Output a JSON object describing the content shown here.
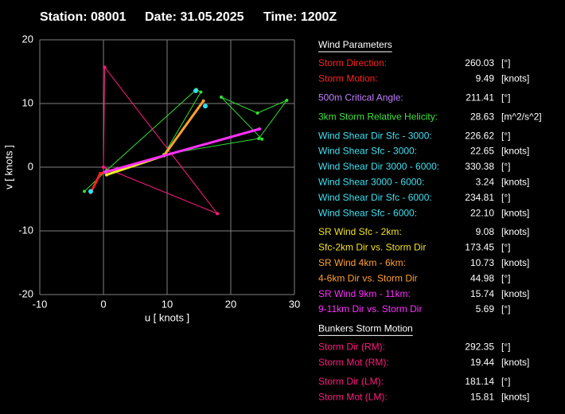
{
  "header": {
    "station": "Station: 08001",
    "date": "Date: 31.05.2025",
    "time": "Time: 1200Z"
  },
  "chart_data": {
    "type": "hodograph",
    "xlabel": "u  [ knots ]",
    "ylabel": "v  [ knots ]",
    "xlim": [
      -10,
      30
    ],
    "ylim": [
      -20,
      20
    ],
    "xticks": [
      -10,
      0,
      10,
      20,
      30
    ],
    "yticks": [
      -20,
      -10,
      0,
      10,
      20
    ],
    "grid": true,
    "series": [
      {
        "color": "#30e030",
        "width": 1,
        "x": [
          -3,
          0.5,
          14.6,
          15.3,
          9.5,
          24.4,
          28.8,
          24.2,
          18.5,
          24.9
        ],
        "values": [
          -3.8,
          -0.5,
          12.2,
          11.8,
          2,
          4.5,
          10.5,
          8.5,
          11,
          4.4
        ]
      },
      {
        "color": "#ff1a80",
        "width": 1,
        "x": [
          0,
          0.2,
          17.9,
          0
        ],
        "values": [
          0,
          15.7,
          -7.3,
          0
        ]
      },
      {
        "color": "#ff2020",
        "width": 3,
        "x": [
          -2,
          -0.5,
          9.5
        ],
        "values": [
          -4,
          -1,
          1.8
        ]
      },
      {
        "color": "#f0f020",
        "width": 3,
        "x": [
          0.5,
          9.5
        ],
        "values": [
          -1.2,
          1.8
        ]
      },
      {
        "color": "#ffa030",
        "width": 3,
        "x": [
          9.5,
          15.7
        ],
        "values": [
          1.8,
          10.4
        ]
      },
      {
        "color": "#ff30ff",
        "width": 3,
        "x": [
          0.2,
          24.5
        ],
        "values": [
          -0.8,
          6
        ]
      },
      {
        "color": "#30e0f0",
        "width": 0,
        "x": [
          -2,
          14.5,
          16
        ],
        "values": [
          -3.8,
          12,
          9.6
        ]
      }
    ]
  },
  "panel": {
    "sections": [
      {
        "title": "Wind Parameters",
        "groups": [
          [
            {
              "label": "Storm Direction:",
              "value": "260.03",
              "unit": "[°]",
              "color": "#ff2020"
            },
            {
              "label": "Storm Motion:",
              "value": "9.49",
              "unit": "[knots]",
              "color": "#ff2020"
            }
          ],
          [
            {
              "label": "500m Critical Angle:",
              "value": "211.41",
              "unit": "[°]",
              "color": "#c080ff"
            }
          ],
          [
            {
              "label": "3km Storm Relative Helicity:",
              "value": "28.63",
              "unit": "[m^2/s^2]",
              "color": "#40e040"
            }
          ],
          [
            {
              "label": "Wind Shear Dir Sfc - 3000:",
              "value": "226.62",
              "unit": "[°]",
              "color": "#40e0f0"
            },
            {
              "label": "Wind Shear Sfc - 3000:",
              "value": "22.65",
              "unit": "[knots]",
              "color": "#40e0f0"
            },
            {
              "label": "Wind Shear Dir 3000 - 6000:",
              "value": "330.38",
              "unit": "[°]",
              "color": "#40e0f0"
            },
            {
              "label": "Wind Shear 3000 - 6000:",
              "value": "3.24",
              "unit": "[knots]",
              "color": "#40e0f0"
            },
            {
              "label": "Wind Shear Dir Sfc - 6000:",
              "value": "234.81",
              "unit": "[°]",
              "color": "#40e0f0"
            },
            {
              "label": "Wind Shear Sfc - 6000:",
              "value": "22.10",
              "unit": "[knots]",
              "color": "#40e0f0"
            }
          ],
          [
            {
              "label": "SR Wind Sfc - 2km:",
              "value": "9.08",
              "unit": "[knots]",
              "color": "#f0e020"
            },
            {
              "label": "Sfc-2km Dir vs. Storm Dir",
              "value": "173.45",
              "unit": "[°]",
              "color": "#f0e020"
            },
            {
              "label": "SR Wind 4km - 6km:",
              "value": "10.73",
              "unit": "[knots]",
              "color": "#ffa030"
            },
            {
              "label": "4-6km Dir vs. Storm Dir",
              "value": "44.98",
              "unit": "[°]",
              "color": "#ffa030"
            },
            {
              "label": "SR Wind 9km - 11km:",
              "value": "15.74",
              "unit": "[knots]",
              "color": "#ff30ff"
            },
            {
              "label": "9-11km Dir vs. Storm Dir",
              "value": "5.69",
              "unit": "[°]",
              "color": "#ff30ff"
            }
          ]
        ]
      },
      {
        "title": "Bunkers Storm Motion",
        "groups": [
          [
            {
              "label": "Storm Dir (RM):",
              "value": "292.35",
              "unit": "[°]",
              "color": "#ff1a80"
            },
            {
              "label": "Storm Mot (RM):",
              "value": "19.44",
              "unit": "[knots]",
              "color": "#ff1a80"
            }
          ],
          [
            {
              "label": "Storm Dir (LM):",
              "value": "181.14",
              "unit": "[°]",
              "color": "#ff1a80"
            },
            {
              "label": "Storm Mot (LM):",
              "value": "15.81",
              "unit": "[knots]",
              "color": "#ff1a80"
            }
          ]
        ]
      }
    ]
  }
}
